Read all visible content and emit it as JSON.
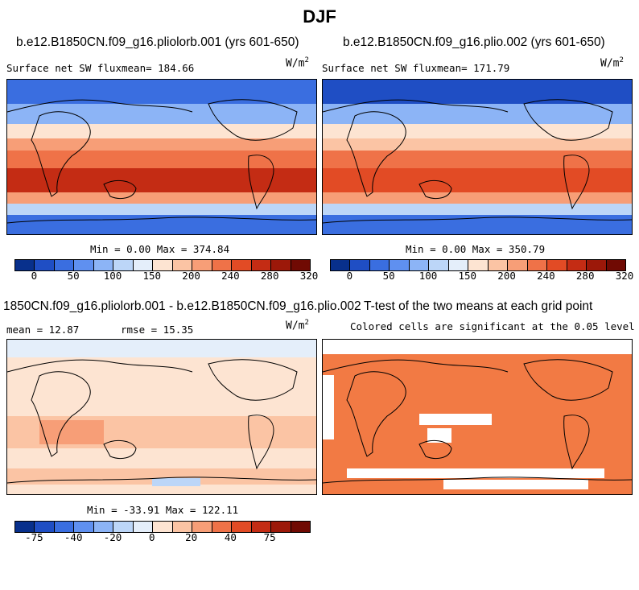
{
  "main_title": "DJF",
  "units_label": "W/m",
  "units_sup": "2",
  "palette": [
    "#08308c",
    "#1f4ec4",
    "#3a6ee0",
    "#5f90f0",
    "#8cb4f6",
    "#bcd6f8",
    "#e4eefa",
    "#fde4d2",
    "#fbc4a4",
    "#f79e77",
    "#ef7248",
    "#e24b25",
    "#c42c14",
    "#9c1809",
    "#700a03"
  ],
  "panels": [
    {
      "title": "b.e12.B1850CN.f09_g16.pliolorb.001 (yrs 601-650)",
      "subtitle": "Surface net SW fluxmean= 184.66",
      "minmax": "Min =   0.00 Max = 374.84",
      "tick_labels": [
        "0",
        "50",
        "100",
        "150",
        "200",
        "240",
        "280",
        "320"
      ]
    },
    {
      "title": "b.e12.B1850CN.f09_g16.plio.002 (yrs 601-650)",
      "subtitle": "Surface net SW fluxmean= 171.79",
      "minmax": "Min =   0.00 Max = 350.79",
      "tick_labels": [
        "0",
        "50",
        "100",
        "150",
        "200",
        "240",
        "280",
        "320"
      ]
    },
    {
      "title": "1850CN.f09_g16.pliolorb.001 - b.e12.B1850CN.f09_g16.plio.002",
      "subtitle_mean": "mean =  12.87",
      "subtitle_rmse": "rmse =  15.35",
      "minmax": "Min = -33.91 Max = 122.11",
      "tick_labels": [
        "-75",
        "-40",
        "-20",
        "0",
        "20",
        "40",
        "75"
      ]
    },
    {
      "title": "T-test of the two means at each grid point",
      "subtitle": "Colored cells are significant at the 0.05 level",
      "fill_color": "#f27a44"
    }
  ],
  "chart_data": [
    {
      "type": "heatmap",
      "title": "b.e12.B1850CN.f09_g16.pliolorb.001 (yrs 601-650)",
      "subtitle": "Surface net SW flux",
      "mean": 184.66,
      "min": 0.0,
      "max": 374.84,
      "units": "W/m2",
      "colorbar_ticks": [
        0,
        50,
        100,
        150,
        200,
        240,
        280,
        320
      ]
    },
    {
      "type": "heatmap",
      "title": "b.e12.B1850CN.f09_g16.plio.002 (yrs 601-650)",
      "subtitle": "Surface net SW flux",
      "mean": 171.79,
      "min": 0.0,
      "max": 350.79,
      "units": "W/m2",
      "colorbar_ticks": [
        0,
        50,
        100,
        150,
        200,
        240,
        280,
        320
      ]
    },
    {
      "type": "heatmap",
      "title": "1850CN.f09_g16.pliolorb.001 - b.e12.B1850CN.f09_g16.plio.002",
      "mean": 12.87,
      "rmse": 15.35,
      "min": -33.91,
      "max": 122.11,
      "units": "W/m2",
      "colorbar_ticks": [
        -75,
        -40,
        -20,
        0,
        20,
        40,
        75
      ]
    },
    {
      "type": "heatmap",
      "title": "T-test of the two means at each grid point",
      "subtitle": "Colored cells are significant at the 0.05 level",
      "significance_level": 0.05
    }
  ]
}
